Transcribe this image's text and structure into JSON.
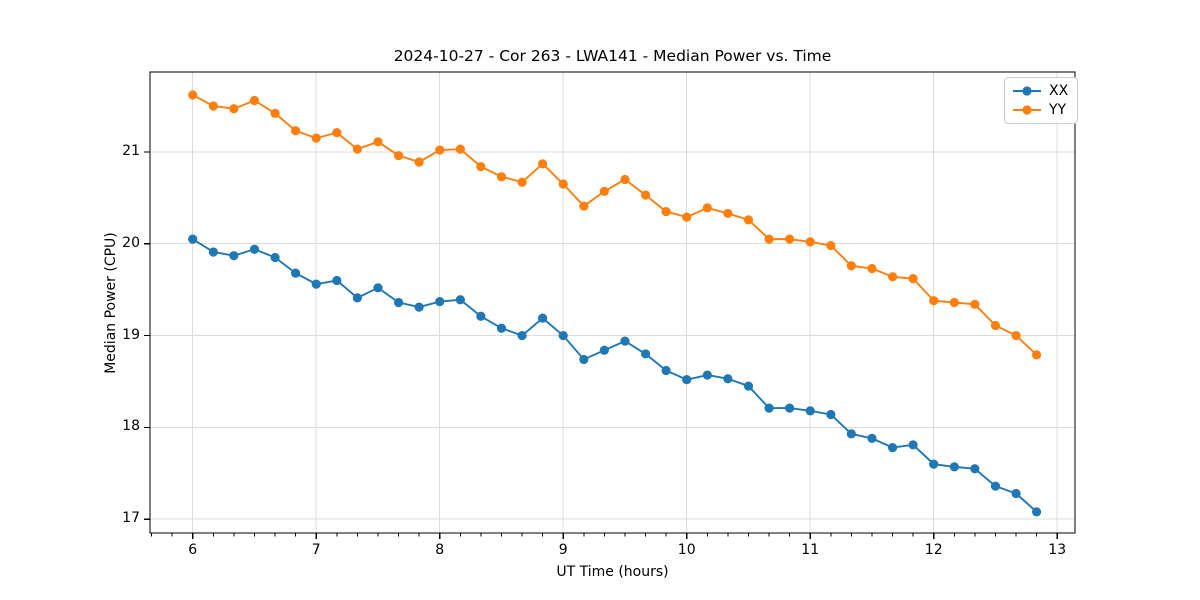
{
  "figure": {
    "background": "#ffffff"
  },
  "chart_data": {
    "type": "line",
    "title": "2024-10-27 - Cor 263 - LWA141 - Median Power vs. Time",
    "xlabel": "UT Time (hours)",
    "ylabel": "Median Power (CPU)",
    "xlim": [
      5.654,
      13.144
    ],
    "ylim": [
      16.85,
      21.87
    ],
    "xticks": [
      6,
      7,
      8,
      9,
      10,
      11,
      12,
      13
    ],
    "yticks": [
      17,
      18,
      19,
      20,
      21
    ],
    "x_minor_step": 0.1666667,
    "grid": true,
    "grid_color": "#dcdcdc",
    "spine_color": "#000000",
    "legend_position": "upper right",
    "marker": "circle",
    "x": [
      6.0,
      6.167,
      6.333,
      6.5,
      6.667,
      6.833,
      7.0,
      7.167,
      7.333,
      7.5,
      7.667,
      7.833,
      8.0,
      8.167,
      8.333,
      8.5,
      8.667,
      8.833,
      9.0,
      9.167,
      9.333,
      9.5,
      9.667,
      9.833,
      10.0,
      10.167,
      10.333,
      10.5,
      10.667,
      10.833,
      11.0,
      11.167,
      11.333,
      11.5,
      11.667,
      11.833,
      12.0,
      12.167,
      12.333,
      12.5,
      12.667,
      12.833
    ],
    "series": [
      {
        "name": "XX",
        "color": "#1f77b4",
        "values": [
          20.05,
          19.91,
          19.87,
          19.94,
          19.85,
          19.68,
          19.56,
          19.6,
          19.41,
          19.52,
          19.36,
          19.31,
          19.37,
          19.39,
          19.21,
          19.08,
          19.0,
          19.19,
          19.0,
          18.74,
          18.84,
          18.94,
          18.8,
          18.62,
          18.52,
          18.57,
          18.53,
          18.45,
          18.21,
          18.21,
          18.18,
          18.14,
          17.93,
          17.88,
          17.78,
          17.81,
          17.6,
          17.57,
          17.55,
          17.36,
          17.28,
          17.08
        ]
      },
      {
        "name": "YY",
        "color": "#ff7f0e",
        "values": [
          21.62,
          21.5,
          21.47,
          21.56,
          21.42,
          21.23,
          21.15,
          21.21,
          21.03,
          21.11,
          20.96,
          20.89,
          21.02,
          21.03,
          20.84,
          20.73,
          20.67,
          20.87,
          20.65,
          20.41,
          20.57,
          20.7,
          20.53,
          20.35,
          20.29,
          20.39,
          20.33,
          20.26,
          20.05,
          20.05,
          20.02,
          19.98,
          19.76,
          19.73,
          19.64,
          19.62,
          19.38,
          19.36,
          19.34,
          19.11,
          19.0,
          18.79
        ]
      }
    ]
  }
}
